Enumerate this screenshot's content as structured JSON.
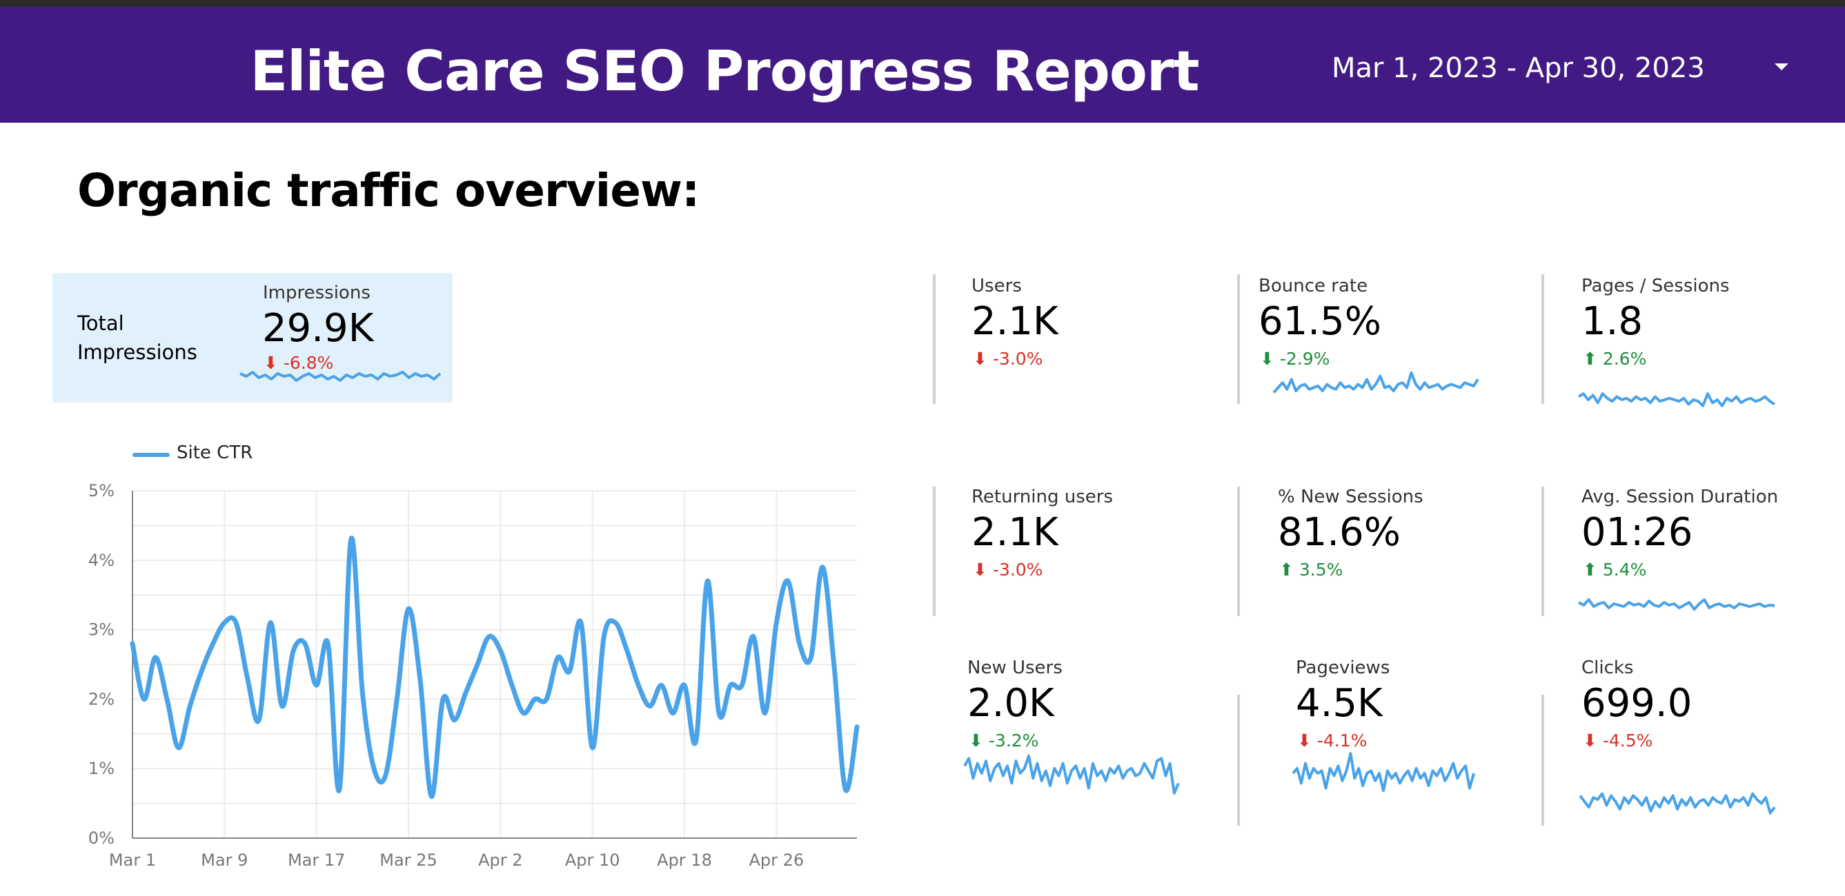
{
  "header": {
    "title": "Elite Care SEO Progress Report",
    "date_range": "Mar 1, 2023 - Apr 30, 2023"
  },
  "section_title": "Organic traffic overview:",
  "impressions_card": {
    "title": "Total Impressions",
    "label": "Impressions",
    "value": "29.9K",
    "delta": "-6.8%"
  },
  "metrics": {
    "users": {
      "label": "Users",
      "value": "2.1K",
      "delta": "-3.0%"
    },
    "bounce_rate": {
      "label": "Bounce rate",
      "value": "61.5%",
      "delta": "-2.9%"
    },
    "pages_sessions": {
      "label": "Pages / Sessions",
      "value": "1.8",
      "delta": "2.6%"
    },
    "returning_users": {
      "label": "Returning users",
      "value": "2.1K",
      "delta": "-3.0%"
    },
    "new_sessions": {
      "label": "% New Sessions",
      "value": "81.6%",
      "delta": "3.5%"
    },
    "avg_session": {
      "label": "Avg. Session Duration",
      "value": "01:26",
      "delta": "5.4%"
    },
    "new_users": {
      "label": "New Users",
      "value": "2.0K",
      "delta": "-3.2%"
    },
    "pageviews": {
      "label": "Pageviews",
      "value": "4.5K",
      "delta": "-4.1%"
    },
    "clicks": {
      "label": "Clicks",
      "value": "699.0",
      "delta": "-4.5%"
    }
  },
  "icons": {
    "delta_down": "arrow-down-icon",
    "delta_up": "arrow-up-icon",
    "dropdown": "caret-down-icon"
  },
  "colors": {
    "header_bg": "#421a84",
    "card_bg": "#e1f1fc",
    "line": "#4aa3e8",
    "negative": "#d93025",
    "positive": "#1e8e3e"
  },
  "chart_data": {
    "type": "line",
    "title": "",
    "series": [
      {
        "name": "Site CTR",
        "values": [
          2.8,
          2.0,
          2.6,
          2.0,
          1.3,
          1.9,
          2.4,
          2.8,
          3.1,
          3.1,
          2.3,
          1.7,
          3.1,
          1.9,
          2.7,
          2.8,
          2.2,
          2.8,
          0.7,
          4.3,
          2.1,
          1.0,
          0.9,
          2.0,
          3.3,
          2.3,
          0.6,
          2.0,
          1.7,
          2.1,
          2.5,
          2.9,
          2.7,
          2.2,
          1.8,
          2.0,
          2.0,
          2.6,
          2.4,
          3.1,
          1.3,
          2.9,
          3.1,
          2.7,
          2.2,
          1.9,
          2.2,
          1.8,
          2.2,
          1.4,
          3.7,
          1.8,
          2.2,
          2.2,
          2.9,
          1.8,
          3.1,
          3.7,
          2.8,
          2.6,
          3.9,
          2.5,
          0.7,
          1.6
        ]
      }
    ],
    "x_tick_labels": [
      "Mar 1",
      "Mar 9",
      "Mar 17",
      "Mar 25",
      "Apr 2",
      "Apr 10",
      "Apr 18",
      "Apr 26"
    ],
    "y_tick_labels": [
      "0%",
      "1%",
      "2%",
      "3%",
      "4%",
      "5%"
    ],
    "ylim": [
      0,
      5
    ],
    "xlabel": "",
    "ylabel": "",
    "grid": true,
    "legend": "top-left"
  },
  "sparklines": {
    "impressions": [
      0.55,
      0.45,
      0.6,
      0.4,
      0.5,
      0.35,
      0.55,
      0.45,
      0.5,
      0.3,
      0.45,
      0.55,
      0.4,
      0.5,
      0.35,
      0.45,
      0.3,
      0.5,
      0.4,
      0.55,
      0.45,
      0.5,
      0.35,
      0.55,
      0.45,
      0.5,
      0.6,
      0.4,
      0.55,
      0.45,
      0.5,
      0.35,
      0.55
    ],
    "bounce_rate": [
      0.3,
      0.45,
      0.6,
      0.4,
      0.7,
      0.35,
      0.5,
      0.55,
      0.4,
      0.45,
      0.5,
      0.35,
      0.55,
      0.45,
      0.4,
      0.6,
      0.45,
      0.5,
      0.4,
      0.55,
      0.45,
      0.7,
      0.4,
      0.55,
      0.8,
      0.45,
      0.5,
      0.35,
      0.55,
      0.6,
      0.45,
      0.9,
      0.55,
      0.4,
      0.6,
      0.45,
      0.5,
      0.55,
      0.4,
      0.5,
      0.55,
      0.5,
      0.45,
      0.6,
      0.55,
      0.5,
      0.7
    ],
    "pages_sessions": [
      0.6,
      0.7,
      0.5,
      0.65,
      0.4,
      0.7,
      0.55,
      0.45,
      0.6,
      0.5,
      0.55,
      0.45,
      0.6,
      0.5,
      0.55,
      0.4,
      0.6,
      0.45,
      0.5,
      0.55,
      0.5,
      0.45,
      0.55,
      0.35,
      0.5,
      0.45,
      0.3,
      0.7,
      0.4,
      0.5,
      0.3,
      0.55,
      0.45,
      0.6,
      0.4,
      0.5,
      0.55,
      0.45,
      0.5,
      0.6,
      0.45,
      0.35
    ],
    "avg_session": [
      0.6,
      0.5,
      0.7,
      0.45,
      0.55,
      0.6,
      0.4,
      0.55,
      0.5,
      0.45,
      0.6,
      0.5,
      0.55,
      0.45,
      0.65,
      0.5,
      0.45,
      0.6,
      0.5,
      0.55,
      0.4,
      0.5,
      0.6,
      0.35,
      0.55,
      0.7,
      0.4,
      0.5,
      0.55,
      0.45,
      0.5,
      0.4,
      0.55,
      0.5,
      0.45,
      0.5,
      0.55,
      0.45,
      0.5,
      0.48
    ],
    "new_users": [
      0.65,
      0.8,
      0.4,
      0.7,
      0.5,
      0.75,
      0.35,
      0.6,
      0.7,
      0.45,
      0.65,
      0.3,
      0.75,
      0.5,
      0.6,
      0.85,
      0.4,
      0.7,
      0.35,
      0.55,
      0.25,
      0.6,
      0.45,
      0.7,
      0.3,
      0.55,
      0.65,
      0.4,
      0.6,
      0.2,
      0.7,
      0.45,
      0.55,
      0.35,
      0.6,
      0.5,
      0.65,
      0.4,
      0.55,
      0.6,
      0.45,
      0.5,
      0.7,
      0.55,
      0.4,
      0.75,
      0.8,
      0.45,
      0.7,
      0.1,
      0.3
    ],
    "pageviews": [
      0.5,
      0.6,
      0.3,
      0.7,
      0.4,
      0.6,
      0.5,
      0.55,
      0.2,
      0.6,
      0.45,
      0.65,
      0.35,
      0.55,
      0.9,
      0.4,
      0.6,
      0.25,
      0.5,
      0.55,
      0.35,
      0.5,
      0.15,
      0.55,
      0.4,
      0.5,
      0.3,
      0.45,
      0.55,
      0.35,
      0.6,
      0.4,
      0.5,
      0.25,
      0.55,
      0.45,
      0.6,
      0.35,
      0.5,
      0.7,
      0.4,
      0.55,
      0.65,
      0.2,
      0.5
    ],
    "clicks": [
      0.6,
      0.45,
      0.3,
      0.55,
      0.5,
      0.65,
      0.35,
      0.6,
      0.45,
      0.25,
      0.55,
      0.4,
      0.6,
      0.5,
      0.35,
      0.55,
      0.2,
      0.45,
      0.3,
      0.55,
      0.4,
      0.6,
      0.25,
      0.5,
      0.35,
      0.55,
      0.3,
      0.45,
      0.5,
      0.35,
      0.55,
      0.45,
      0.4,
      0.6,
      0.3,
      0.5,
      0.45,
      0.55,
      0.35,
      0.65,
      0.5,
      0.4,
      0.55,
      0.15,
      0.3
    ]
  }
}
